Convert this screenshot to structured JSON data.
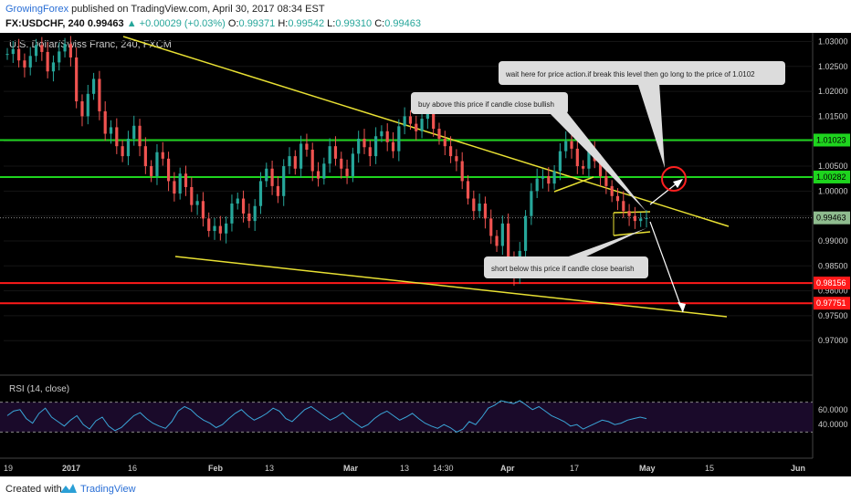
{
  "header": {
    "author": "GrowingForex",
    "published_text": "published on TradingView.com, April 30, 2017 08:34 EST",
    "symbol": "FX:USDCHF, 240",
    "last": "0.99463",
    "change": "+0.00029 (+0.03%)",
    "o_label": "O:",
    "o_value": "0.99371",
    "h_label": "H:",
    "h_value": "0.99542",
    "l_label": "L:",
    "l_value": "0.99310",
    "c_label": "C:",
    "c_value": "0.99463"
  },
  "chart_title": "U.S. Dollar/Swiss Franc, 240, FXCM",
  "rsi_label": "RSI (14, close)",
  "footer": {
    "created_with": "Created with",
    "brand": "TradingView"
  },
  "colors": {
    "background": "#000000",
    "up_candle": "#26a69a",
    "down_candle": "#ef5350",
    "trendline": "#e8e033",
    "support_resistance_green": "#1ed41e",
    "support_red": "#ff1a1a",
    "rsi_line": "#3aa6d8",
    "rsi_band": "#1a0a2a"
  },
  "chart_data": {
    "type": "line",
    "ylim": [
      0.964,
      1.031
    ],
    "y_ticks": [
      "1.03000",
      "1.02500",
      "1.02000",
      "1.01500",
      "1.01000",
      "1.00500",
      "1.00000",
      "0.99500",
      "0.99000",
      "0.98500",
      "0.98000",
      "0.97500",
      "0.97000"
    ],
    "x_ticks": [
      "19",
      "2017",
      "16",
      "Feb",
      "13",
      "Mar",
      "13",
      "14:30",
      "Apr",
      "17",
      "May",
      "15",
      "Jun"
    ],
    "price_labels": [
      {
        "value": "1.01023",
        "y": 1.01023,
        "kind": "green"
      },
      {
        "value": "1.00282",
        "y": 1.00282,
        "kind": "green"
      },
      {
        "value": "0.99463",
        "y": 0.99463,
        "kind": "last"
      },
      {
        "value": "0.98156",
        "y": 0.98156,
        "kind": "red"
      },
      {
        "value": "0.97751",
        "y": 0.97751,
        "kind": "red"
      }
    ],
    "horizontal_levels": [
      {
        "y": 1.01023,
        "color": "green"
      },
      {
        "y": 1.00282,
        "color": "green"
      },
      {
        "y": 0.98156,
        "color": "red"
      },
      {
        "y": 0.97751,
        "color": "red"
      }
    ],
    "series": [
      {
        "values": [
          1.0275,
          1.0285,
          1.0262,
          1.0248,
          1.0271,
          1.0293,
          1.0279,
          1.024,
          1.0258,
          1.028,
          1.0295,
          1.0268,
          1.018,
          1.015,
          1.0195,
          1.0225,
          1.016,
          1.0115,
          1.0128,
          1.009,
          1.007,
          1.0105,
          1.0131,
          1.009,
          1.005,
          1.003,
          1.0078,
          1.0065,
          1.002,
          0.9995,
          1.0035,
          1.0008,
          0.9972,
          0.998,
          0.9945,
          0.992,
          0.993,
          0.9915,
          0.9935,
          0.9975,
          0.9985,
          0.9955,
          0.994,
          0.997,
          1.002,
          1.0045,
          1.001,
          0.999,
          1.005,
          1.007,
          1.0045,
          1.0095,
          1.0083,
          1.004,
          1.0025,
          1.0055,
          1.009,
          1.0065,
          1.0045,
          1.003,
          1.0075,
          1.0105,
          1.0088,
          1.007,
          1.011,
          1.012,
          1.0098,
          1.008,
          1.013,
          1.015,
          1.0135,
          1.012,
          1.0145,
          1.0155,
          1.0125,
          1.0105,
          1.009,
          1.007,
          1.006,
          1.002,
          0.9985,
          0.996,
          0.9975,
          0.9945,
          0.991,
          0.989,
          0.9935,
          0.9865,
          0.983,
          0.988,
          0.995,
          1.0,
          1.0025,
          1.003,
          1.0015,
          1.004,
          1.008,
          1.01,
          1.0085,
          1.005,
          1.0045,
          1.008,
          1.006,
          1.003,
          1.001,
          0.999,
          0.998,
          0.996,
          0.995,
          0.994,
          0.9945,
          0.9946
        ]
      }
    ],
    "annotations": [
      "wait here for price action.if break this level then go long to the price of 1.0102",
      "buy above this price if candle close bullish",
      "short below this price if candle close bearish"
    ],
    "rsi": {
      "y_ticks": [
        "60.0000",
        "40.0000"
      ],
      "upper": 70,
      "lower": 30,
      "values": [
        52,
        58,
        60,
        48,
        42,
        55,
        62,
        50,
        44,
        38,
        46,
        52,
        40,
        34,
        45,
        50,
        38,
        32,
        36,
        44,
        52,
        56,
        48,
        42,
        38,
        35,
        44,
        58,
        64,
        60,
        52,
        46,
        42,
        36,
        40,
        48,
        55,
        60,
        52,
        46,
        50,
        55,
        62,
        58,
        48,
        44,
        52,
        60,
        64,
        58,
        52,
        46,
        50,
        56,
        48,
        42,
        36,
        40,
        48,
        54,
        58,
        52,
        46,
        50,
        55,
        48,
        42,
        38,
        35,
        40,
        36,
        30,
        34,
        44,
        40,
        50,
        62,
        66,
        72,
        70,
        68,
        72,
        66,
        60,
        64,
        58,
        52,
        48,
        44,
        38,
        40,
        34,
        38,
        42,
        46,
        44,
        40,
        42,
        46,
        48,
        50,
        48
      ]
    }
  }
}
